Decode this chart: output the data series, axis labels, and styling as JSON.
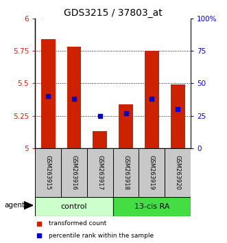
{
  "title": "GDS3215 / 37803_at",
  "samples": [
    "GSM263915",
    "GSM263916",
    "GSM263917",
    "GSM263918",
    "GSM263919",
    "GSM263920"
  ],
  "groups": [
    "control",
    "control",
    "control",
    "13-cis RA",
    "13-cis RA",
    "13-cis RA"
  ],
  "red_values": [
    5.84,
    5.78,
    5.13,
    5.34,
    5.75,
    5.49
  ],
  "blue_percentiles": [
    40,
    38,
    25,
    27,
    38,
    30
  ],
  "ylim_left": [
    5.0,
    6.0
  ],
  "ylim_right": [
    0,
    100
  ],
  "yticks_left": [
    5.0,
    5.25,
    5.5,
    5.75,
    6.0
  ],
  "yticks_right": [
    0,
    25,
    50,
    75,
    100
  ],
  "ytick_labels_left": [
    "5",
    "5.25",
    "5.5",
    "5.75",
    "6"
  ],
  "ytick_labels_right": [
    "0",
    "25",
    "50",
    "75",
    "100%"
  ],
  "bar_color": "#cc2200",
  "blue_color": "#0000cc",
  "baseline": 5.0,
  "bar_width": 0.55,
  "ctrl_color": "#ccffcc",
  "ra_color": "#44dd44",
  "gray_color": "#cccccc",
  "agent_label": "agent",
  "legend_red": "transformed count",
  "legend_blue": "percentile rank within the sample",
  "title_fontsize": 10,
  "tick_fontsize": 7.5,
  "sample_fontsize": 6,
  "group_fontsize": 8,
  "legend_fontsize": 6.5
}
